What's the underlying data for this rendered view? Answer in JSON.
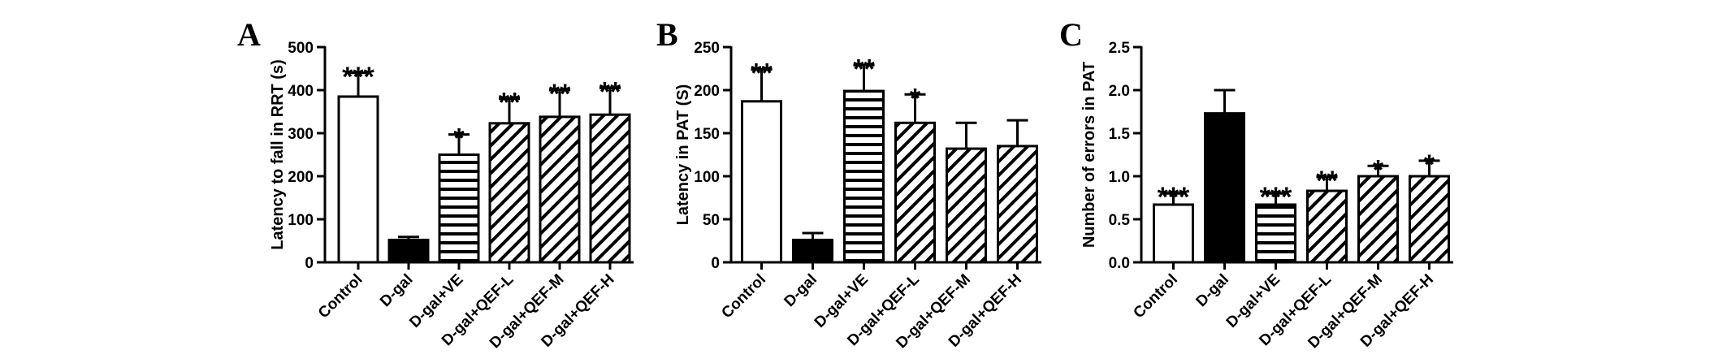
{
  "chart_data": [
    {
      "panel": "A",
      "type": "bar",
      "ylabel": "Latency to fall in RRT (s)",
      "ylim": [
        0,
        500
      ],
      "yticks": [
        "0",
        "100",
        "200",
        "300",
        "400",
        "500"
      ],
      "categories": [
        "Control",
        "D-gal",
        "D-gal+VE",
        "D-gal+QEF-L",
        "D-gal+QEF-M",
        "D-gal+QEF-H"
      ],
      "values": [
        385,
        52,
        250,
        323,
        338,
        343
      ],
      "errors": [
        55,
        7,
        47,
        57,
        62,
        62
      ],
      "significance": [
        "***",
        "",
        "*",
        "**",
        "**",
        "**"
      ],
      "fills": [
        "white",
        "black",
        "horizontal-stripes",
        "diagonal-hatch",
        "diagonal-hatch",
        "diagonal-hatch"
      ]
    },
    {
      "panel": "B",
      "type": "bar",
      "ylabel": "Latency in PAT (S)",
      "ylim": [
        0,
        250
      ],
      "yticks": [
        "0",
        "50",
        "100",
        "150",
        "200",
        "250"
      ],
      "categories": [
        "Control",
        "D-gal",
        "D-gal+VE",
        "D-gal+QEF-L",
        "D-gal+QEF-M",
        "D-gal+QEF-H"
      ],
      "values": [
        187,
        26,
        199,
        162,
        132,
        135
      ],
      "errors": [
        37,
        8,
        30,
        33,
        30,
        30
      ],
      "significance": [
        "**",
        "",
        "**",
        "*",
        "",
        ""
      ],
      "fills": [
        "white",
        "black",
        "horizontal-stripes",
        "diagonal-hatch",
        "diagonal-hatch",
        "diagonal-hatch"
      ]
    },
    {
      "panel": "C",
      "type": "bar",
      "ylabel": "Number of errors in  PAT",
      "ylim": [
        0,
        2.5
      ],
      "yticks": [
        "0.0",
        "0.5",
        "1.0",
        "1.5",
        "2.0",
        "2.5"
      ],
      "categories": [
        "Control",
        "D-gal",
        "D-gal+VE",
        "D-gal+QEF-L",
        "D-gal+QEF-M",
        "D-gal+QEF-H"
      ],
      "values": [
        0.67,
        1.73,
        0.67,
        0.83,
        1.0,
        1.0
      ],
      "errors": [
        0.13,
        0.27,
        0.13,
        0.16,
        0.12,
        0.18
      ],
      "significance": [
        "***",
        "",
        "***",
        "**",
        "*",
        "*"
      ],
      "fills": [
        "white",
        "black",
        "horizontal-stripes",
        "diagonal-hatch",
        "diagonal-hatch",
        "diagonal-hatch"
      ]
    }
  ]
}
